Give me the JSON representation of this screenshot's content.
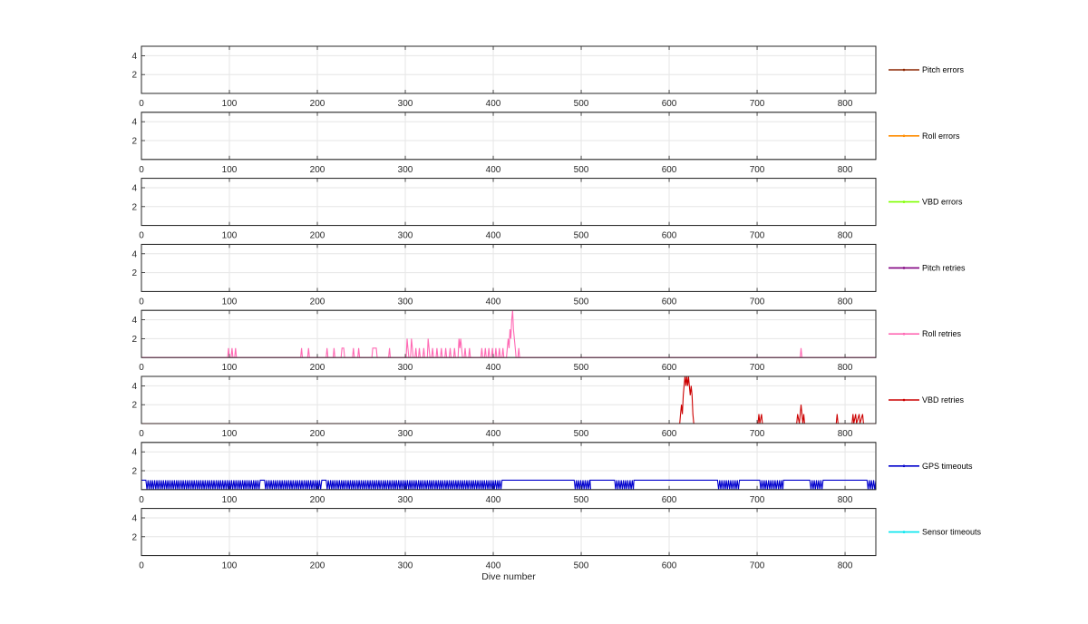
{
  "chart_data": {
    "type": "line",
    "xlabel": "Dive number",
    "xlim": [
      0,
      835
    ],
    "xticks": [
      0,
      100,
      200,
      300,
      400,
      500,
      600,
      700,
      800
    ],
    "ylim": [
      0,
      5
    ],
    "yticks": [
      2,
      4
    ],
    "grid": true,
    "legend_position": "right of each panel",
    "panels": [
      {
        "name": "Pitch errors",
        "color": "#8b2500",
        "points": []
      },
      {
        "name": "Roll errors",
        "color": "#ff8c00",
        "points": []
      },
      {
        "name": "VBD errors",
        "color": "#7fff00",
        "points": []
      },
      {
        "name": "Pitch retries",
        "color": "#800080",
        "points": []
      },
      {
        "name": "Roll retries",
        "color": "#ff69b4",
        "points": [
          [
            0,
            0
          ],
          [
            98,
            0
          ],
          [
            99,
            1
          ],
          [
            100,
            0
          ],
          [
            102,
            0
          ],
          [
            103,
            1
          ],
          [
            104,
            0
          ],
          [
            106,
            0
          ],
          [
            107,
            1
          ],
          [
            108,
            0
          ],
          [
            181,
            0
          ],
          [
            182,
            1
          ],
          [
            183,
            0
          ],
          [
            189,
            0
          ],
          [
            190,
            1
          ],
          [
            191,
            0
          ],
          [
            210,
            0
          ],
          [
            211,
            1
          ],
          [
            212,
            0
          ],
          [
            218,
            0
          ],
          [
            219,
            1
          ],
          [
            220,
            0
          ],
          [
            227,
            0
          ],
          [
            228,
            1
          ],
          [
            230,
            1
          ],
          [
            231,
            0
          ],
          [
            240,
            0
          ],
          [
            241,
            1
          ],
          [
            242,
            0
          ],
          [
            246,
            0
          ],
          [
            247,
            1
          ],
          [
            248,
            0
          ],
          [
            262,
            0
          ],
          [
            263,
            1
          ],
          [
            267,
            1
          ],
          [
            268,
            0
          ],
          [
            281,
            0
          ],
          [
            282,
            1
          ],
          [
            283,
            0
          ],
          [
            301,
            0
          ],
          [
            302,
            2
          ],
          [
            303,
            1
          ],
          [
            304,
            0
          ],
          [
            306,
            0
          ],
          [
            307,
            2
          ],
          [
            308,
            1
          ],
          [
            309,
            0
          ],
          [
            311,
            0
          ],
          [
            312,
            1
          ],
          [
            313,
            0
          ],
          [
            315,
            0
          ],
          [
            316,
            1
          ],
          [
            317,
            0
          ],
          [
            320,
            0
          ],
          [
            321,
            1
          ],
          [
            322,
            0
          ],
          [
            325,
            0
          ],
          [
            326,
            2
          ],
          [
            327,
            1
          ],
          [
            328,
            0
          ],
          [
            330,
            0
          ],
          [
            331,
            1
          ],
          [
            332,
            0
          ],
          [
            335,
            0
          ],
          [
            336,
            1
          ],
          [
            337,
            0
          ],
          [
            340,
            0
          ],
          [
            341,
            1
          ],
          [
            342,
            0
          ],
          [
            345,
            0
          ],
          [
            346,
            1
          ],
          [
            347,
            0
          ],
          [
            350,
            0
          ],
          [
            351,
            1
          ],
          [
            352,
            0
          ],
          [
            355,
            0
          ],
          [
            356,
            1
          ],
          [
            357,
            0
          ],
          [
            360,
            0
          ],
          [
            361,
            2
          ],
          [
            362,
            1
          ],
          [
            363,
            2
          ],
          [
            364,
            1
          ],
          [
            365,
            0
          ],
          [
            367,
            0
          ],
          [
            368,
            1
          ],
          [
            369,
            0
          ],
          [
            372,
            0
          ],
          [
            373,
            1
          ],
          [
            374,
            0
          ],
          [
            386,
            0
          ],
          [
            387,
            1
          ],
          [
            388,
            0
          ],
          [
            390,
            0
          ],
          [
            391,
            1
          ],
          [
            392,
            0
          ],
          [
            394,
            0
          ],
          [
            395,
            1
          ],
          [
            396,
            0
          ],
          [
            398,
            0
          ],
          [
            399,
            1
          ],
          [
            400,
            0
          ],
          [
            402,
            0
          ],
          [
            403,
            1
          ],
          [
            404,
            0
          ],
          [
            406,
            0
          ],
          [
            407,
            1
          ],
          [
            408,
            0
          ],
          [
            410,
            0
          ],
          [
            411,
            1
          ],
          [
            412,
            0
          ],
          [
            415,
            0
          ],
          [
            416,
            1
          ],
          [
            417,
            2
          ],
          [
            418,
            1
          ],
          [
            419,
            3
          ],
          [
            420,
            2
          ],
          [
            421,
            4
          ],
          [
            422,
            5
          ],
          [
            423,
            3
          ],
          [
            424,
            2
          ],
          [
            425,
            1
          ],
          [
            426,
            0
          ],
          [
            428,
            0
          ],
          [
            429,
            1
          ],
          [
            430,
            0
          ],
          [
            749,
            0
          ],
          [
            750,
            1
          ],
          [
            751,
            0
          ],
          [
            835,
            0
          ]
        ]
      },
      {
        "name": "VBD retries",
        "color": "#cc0000",
        "points": [
          [
            0,
            0
          ],
          [
            612,
            0
          ],
          [
            613,
            1
          ],
          [
            614,
            2
          ],
          [
            615,
            1
          ],
          [
            616,
            3
          ],
          [
            617,
            4
          ],
          [
            618,
            5
          ],
          [
            619,
            4
          ],
          [
            620,
            5
          ],
          [
            621,
            4
          ],
          [
            622,
            5
          ],
          [
            623,
            4
          ],
          [
            624,
            3
          ],
          [
            625,
            4
          ],
          [
            626,
            3
          ],
          [
            627,
            1
          ],
          [
            628,
            0
          ],
          [
            701,
            0
          ],
          [
            702,
            1
          ],
          [
            703,
            0
          ],
          [
            705,
            1
          ],
          [
            706,
            0
          ],
          [
            745,
            0
          ],
          [
            746,
            1
          ],
          [
            748,
            0
          ],
          [
            749,
            1
          ],
          [
            750,
            2
          ],
          [
            751,
            1
          ],
          [
            752,
            0
          ],
          [
            753,
            1
          ],
          [
            754,
            0
          ],
          [
            790,
            0
          ],
          [
            791,
            1
          ],
          [
            792,
            0
          ],
          [
            808,
            0
          ],
          [
            809,
            1
          ],
          [
            810,
            0
          ],
          [
            812,
            1
          ],
          [
            813,
            0
          ],
          [
            816,
            1
          ],
          [
            817,
            0
          ],
          [
            820,
            1
          ],
          [
            821,
            0
          ],
          [
            835,
            0
          ]
        ]
      },
      {
        "name": "GPS timeouts",
        "color": "#0000cc",
        "pattern": {
          "oscillate_ranges": [
            [
              5,
              135
            ],
            [
              140,
              205
            ],
            [
              210,
              410
            ],
            [
              492,
              510
            ],
            [
              538,
              560
            ],
            [
              655,
              680
            ],
            [
              703,
              730
            ],
            [
              760,
              775
            ],
            [
              825,
              835
            ]
          ],
          "constant_ranges": [
            [
              0,
              5
            ],
            [
              410,
              492
            ],
            [
              510,
              538
            ],
            [
              560,
              655
            ],
            [
              680,
              703
            ],
            [
              730,
              760
            ],
            [
              775,
              790
            ],
            [
              790,
              825
            ]
          ],
          "high": 1,
          "low": 0
        }
      },
      {
        "name": "Sensor timeouts",
        "color": "#00e5ee",
        "points": []
      }
    ]
  }
}
